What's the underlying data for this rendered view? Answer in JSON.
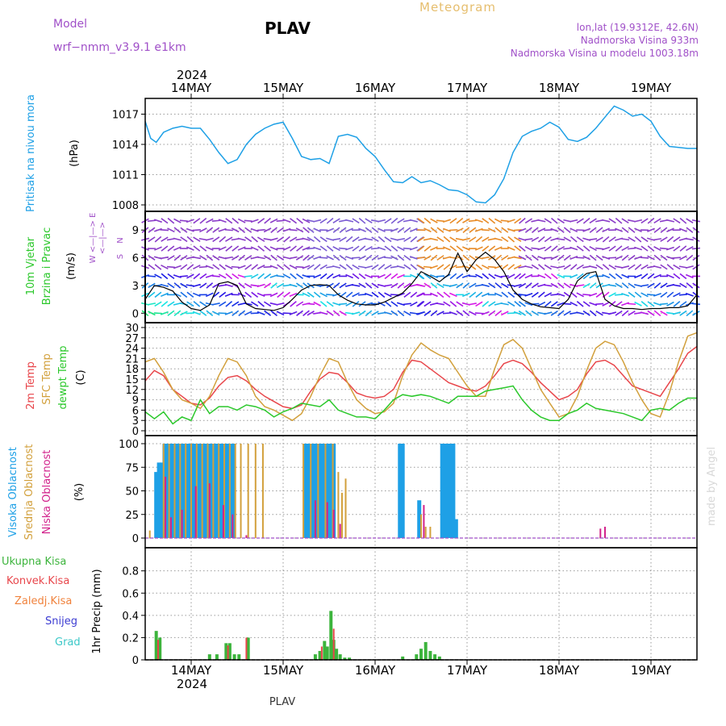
{
  "header": {
    "model_label": "Model",
    "model_name": "wrf−nmm_v3.9.1  e1km",
    "station": "PLAV",
    "product": "Meteogram",
    "coords": "lon,lat (19.9312E, 42.6N)",
    "elevation": "Nadmorska Visina 933m",
    "model_elevation": "Nadmorska Visina u modelu 1003.18m",
    "year_top": "2024",
    "year_bottom": "2024",
    "footer_station": "PLAV",
    "watermark": "made by Angel"
  },
  "colors": {
    "pressure": "#1ea0e6",
    "temp2m": "#e8464b",
    "sfc_temp": "#d2a03c",
    "dewpoint": "#2bc82b",
    "high_cloud": "#1ea0e6",
    "mid_cloud": "#d2a03c",
    "low_cloud": "#d2238c",
    "precip_total": "#3cb43c",
    "precip_conv": "#e8464b",
    "precip_stratiform": "#f0823c",
    "snow": "#3c3cd2",
    "graupel": "#3cc8c8",
    "label_purple": "#a050c8",
    "label_gold": "#e6be6e"
  },
  "chart_data": [
    {
      "type": "line",
      "panel": "pressure",
      "ylabel": "Pritisak na nivou mora",
      "unit": "(hPa)",
      "yticks": [
        1008,
        1011,
        1014,
        1017
      ],
      "ylim": [
        1008,
        1018
      ],
      "x_dates": [
        "14MAY",
        "15MAY",
        "16MAY",
        "17MAY",
        "18MAY",
        "19MAY"
      ],
      "x_range_days": [
        -0.5,
        5.5
      ],
      "series": [
        {
          "x": [
            -0.5,
            -0.44,
            -0.38,
            -0.3,
            -0.2,
            -0.1,
            0,
            0.1,
            0.2,
            0.3,
            0.4,
            0.5,
            0.6,
            0.7,
            0.8,
            0.9,
            1,
            1.1,
            1.2,
            1.3,
            1.4,
            1.5,
            1.6,
            1.7,
            1.8,
            1.9,
            2,
            2.1,
            2.2,
            2.3,
            2.4,
            2.5,
            2.6,
            2.7,
            2.8,
            2.9,
            3,
            3.1,
            3.2,
            3.3,
            3.4,
            3.5,
            3.6,
            3.7,
            3.8,
            3.9,
            4,
            4.1,
            4.2,
            4.3,
            4.4,
            4.5,
            4.6,
            4.7,
            4.8,
            4.9,
            5,
            5.1,
            5.2,
            5.3,
            5.4,
            5.5
          ],
          "values": [
            1016.3,
            1014.6,
            1014.2,
            1015.2,
            1015.6,
            1015.8,
            1015.6,
            1015.6,
            1014.5,
            1013.2,
            1012.1,
            1012.5,
            1014,
            1015,
            1015.6,
            1016,
            1016.2,
            1014.6,
            1012.8,
            1012.5,
            1012.6,
            1012.1,
            1014.8,
            1015,
            1014.7,
            1013.6,
            1012.8,
            1011.5,
            1010.3,
            1010.2,
            1010.8,
            1010.2,
            1010.4,
            1010,
            1009.5,
            1009.4,
            1009,
            1008.3,
            1008.2,
            1009,
            1010.6,
            1013.2,
            1014.8,
            1015.3,
            1015.6,
            1016.2,
            1015.7,
            1014.5,
            1014.3,
            1014.7,
            1015.6,
            1016.7,
            1017.8,
            1017.4,
            1016.8,
            1017,
            1016.3,
            1014.8,
            1013.8,
            1013.7,
            1013.6,
            1013.6
          ]
        }
      ]
    },
    {
      "type": "line",
      "panel": "wind",
      "ylabel": "10m Vjetar Brzina i Pravac",
      "unit": "(m/s)",
      "yticks": [
        0,
        3,
        6,
        9
      ],
      "ylim": [
        -0.5,
        10.5
      ],
      "legend_top": "N",
      "legend_left": "W <—|—> E",
      "legend_bottom": "S",
      "series": [
        {
          "x": [
            -0.5,
            -0.4,
            -0.3,
            -0.2,
            -0.1,
            0,
            0.1,
            0.2,
            0.3,
            0.4,
            0.5,
            0.6,
            0.7,
            0.8,
            0.9,
            1,
            1.1,
            1.2,
            1.3,
            1.4,
            1.5,
            1.6,
            1.7,
            1.8,
            1.9,
            2,
            2.1,
            2.2,
            2.3,
            2.4,
            2.5,
            2.6,
            2.7,
            2.8,
            2.9,
            3,
            3.1,
            3.2,
            3.3,
            3.4,
            3.5,
            3.6,
            3.7,
            3.8,
            3.9,
            4,
            4.1,
            4.2,
            4.3,
            4.4,
            4.5,
            4.6,
            4.7,
            4.8,
            4.9,
            5,
            5.1,
            5.2,
            5.3,
            5.4,
            5.5
          ],
          "values": [
            1.5,
            3,
            2.8,
            2.4,
            1.2,
            0.5,
            0.3,
            0.9,
            3.2,
            3.4,
            3,
            1,
            0.5,
            0.4,
            0.3,
            0.6,
            1.5,
            2.5,
            3,
            3.1,
            3,
            2,
            1.4,
            1,
            0.9,
            0.9,
            1.2,
            1.7,
            2.2,
            3.2,
            4.5,
            4,
            3.4,
            4.2,
            6.5,
            4.5,
            5.8,
            6.6,
            5.8,
            4.5,
            2.5,
            1.5,
            1,
            0.7,
            0.6,
            0.5,
            1.5,
            3.5,
            4.3,
            4.5,
            1.5,
            0.8,
            0.5,
            0.5,
            0.4,
            0.5,
            0.5,
            0.6,
            0.6,
            0.8,
            2
          ]
        }
      ]
    },
    {
      "type": "line",
      "panel": "temperature",
      "ylabels": [
        "2m Temp",
        "SFC Temp",
        "dewpt Temp"
      ],
      "unit": "(C)",
      "yticks": [
        0,
        3,
        6,
        9,
        12,
        15,
        18,
        21,
        24,
        27,
        30
      ],
      "ylim": [
        0,
        30
      ],
      "x": [
        -0.5,
        -0.4,
        -0.3,
        -0.2,
        -0.1,
        0,
        0.1,
        0.2,
        0.3,
        0.4,
        0.5,
        0.6,
        0.7,
        0.8,
        0.9,
        1,
        1.1,
        1.2,
        1.3,
        1.4,
        1.5,
        1.6,
        1.7,
        1.8,
        1.9,
        2,
        2.1,
        2.2,
        2.3,
        2.4,
        2.5,
        2.6,
        2.7,
        2.8,
        2.9,
        3,
        3.1,
        3.2,
        3.3,
        3.4,
        3.5,
        3.6,
        3.7,
        3.8,
        3.9,
        4,
        4.1,
        4.2,
        4.3,
        4.4,
        4.5,
        4.6,
        4.7,
        4.8,
        4.9,
        5,
        5.1,
        5.2,
        5.3,
        5.4,
        5.5
      ],
      "series": [
        {
          "name": "2m Temp",
          "values": [
            14.5,
            17.5,
            16,
            12,
            10,
            8,
            7.5,
            9.5,
            13,
            15.5,
            16,
            14.5,
            12,
            10,
            8.5,
            7,
            6.5,
            7.5,
            11.5,
            15,
            17,
            16.5,
            14,
            11,
            10,
            9.5,
            10,
            12,
            17,
            20.5,
            20,
            18,
            16,
            14,
            13,
            12,
            11.5,
            13,
            16,
            19.5,
            20.5,
            19.5,
            17,
            14,
            11.5,
            9,
            10,
            12,
            16.5,
            20,
            20.5,
            19,
            16,
            13,
            12,
            11,
            10,
            14,
            18,
            22.5,
            24.5
          ]
        },
        {
          "name": "SFC Temp",
          "values": [
            20,
            21,
            17,
            12,
            9,
            8,
            6.5,
            10,
            16,
            21,
            20,
            16,
            10,
            7,
            6,
            4.5,
            3,
            5,
            10,
            16,
            21,
            20,
            14,
            9,
            6.5,
            5,
            5.5,
            8,
            16,
            22,
            25.5,
            23.5,
            22,
            21,
            17,
            13,
            10,
            10,
            18,
            25,
            26.5,
            24,
            18,
            12,
            8,
            4,
            5,
            10,
            17.5,
            24,
            26,
            25,
            20,
            14,
            9,
            5,
            4,
            11,
            20,
            27.5,
            28.5
          ]
        },
        {
          "name": "dewpt Temp",
          "values": [
            5.5,
            3.5,
            5.5,
            2,
            4,
            3,
            9,
            5,
            7,
            7,
            6,
            7.5,
            7,
            6,
            4,
            5.5,
            6.5,
            8,
            7.5,
            7,
            9,
            6,
            5,
            4,
            4,
            3.5,
            6,
            9,
            10.5,
            10,
            10.5,
            10,
            9,
            8,
            10,
            10,
            10,
            11.5,
            12,
            12.5,
            13,
            9,
            6,
            4,
            3,
            3,
            5,
            6,
            8,
            6.5,
            6,
            5.5,
            5,
            4,
            3,
            6,
            6.5,
            6,
            8,
            9.5,
            9.5
          ]
        }
      ]
    },
    {
      "type": "bar",
      "panel": "cloud",
      "ylabels": [
        "Visoka Oblacnost",
        "Srednja Oblacnost",
        "Niska Oblacnost"
      ],
      "unit": "(%)",
      "yticks": [
        0,
        25,
        50,
        75,
        100
      ],
      "ylim": [
        0,
        100
      ],
      "series": [
        {
          "name": "Visoka Oblacnost",
          "x": [
            -0.38,
            -0.35,
            -0.32,
            -0.29,
            -0.26,
            -0.23,
            -0.2,
            -0.17,
            -0.14,
            -0.11,
            -0.08,
            -0.05,
            -0.02,
            0.01,
            0.04,
            0.07,
            0.1,
            0.13,
            0.16,
            0.19,
            0.22,
            0.25,
            0.28,
            0.31,
            0.34,
            0.37,
            0.4,
            0.43,
            0.46,
            1.25,
            1.28,
            1.31,
            1.34,
            1.37,
            1.4,
            1.43,
            1.46,
            1.49,
            1.52,
            1.55,
            2.27,
            2.3,
            2.48,
            2.73,
            2.76,
            2.79,
            2.82,
            2.85,
            2.88
          ],
          "values": [
            70,
            80,
            80,
            100,
            100,
            100,
            100,
            100,
            100,
            100,
            100,
            100,
            100,
            100,
            100,
            100,
            100,
            100,
            100,
            100,
            100,
            100,
            100,
            100,
            100,
            100,
            100,
            100,
            100,
            100,
            100,
            100,
            100,
            100,
            100,
            100,
            100,
            100,
            100,
            100,
            100,
            100,
            40,
            100,
            100,
            100,
            100,
            100,
            20
          ]
        },
        {
          "name": "Srednja Oblacnost",
          "x": [
            -0.45,
            -0.3,
            -0.24,
            -0.18,
            -0.12,
            -0.06,
            0,
            0.06,
            0.12,
            0.18,
            0.24,
            0.3,
            0.36,
            0.42,
            0.48,
            0.54,
            0.62,
            0.7,
            0.78,
            1.22,
            1.3,
            1.38,
            1.46,
            1.54,
            1.6,
            1.64,
            1.68,
            2.5,
            2.55,
            2.6
          ],
          "values": [
            8,
            100,
            100,
            100,
            100,
            100,
            100,
            100,
            100,
            100,
            100,
            100,
            100,
            100,
            100,
            100,
            100,
            100,
            100,
            100,
            100,
            100,
            100,
            100,
            70,
            48,
            63,
            25,
            12,
            12
          ]
        },
        {
          "name": "Niska Oblacnost",
          "x": [
            -0.28,
            -0.22,
            -0.1,
            0.05,
            0.2,
            0.35,
            0.45,
            0.6,
            1.35,
            1.48,
            1.55,
            1.62,
            2.53,
            4.45,
            4.5
          ],
          "values": [
            65,
            22,
            30,
            55,
            58,
            35,
            25,
            3,
            40,
            38,
            30,
            15,
            35,
            10,
            12
          ]
        }
      ]
    },
    {
      "type": "bar",
      "panel": "precipitation",
      "ylabels": [
        "Ukupna Kisa",
        "Konvek.Kisa",
        "Zaledj.Kisa",
        "Snijeg",
        "Grad"
      ],
      "ylabel": "1hr Precip (mm)",
      "yticks": [
        0,
        0.2,
        0.4,
        0.6,
        0.8
      ],
      "ylim": [
        0,
        0.95
      ],
      "series": [
        {
          "name": "Ukupna Kisa",
          "x": [
            -0.38,
            -0.34,
            0.2,
            0.28,
            0.38,
            0.42,
            0.47,
            0.52,
            0.62,
            1.35,
            1.4,
            1.45,
            1.48,
            1.52,
            1.55,
            1.58,
            1.62,
            1.67,
            1.72,
            2.3,
            2.45,
            2.5,
            2.55,
            2.6,
            2.65,
            2.7
          ],
          "values": [
            0.26,
            0.2,
            0.05,
            0.05,
            0.15,
            0.15,
            0.05,
            0.05,
            0.2,
            0.05,
            0.08,
            0.17,
            0.12,
            0.44,
            0.18,
            0.1,
            0.05,
            0.02,
            0.02,
            0.03,
            0.05,
            0.1,
            0.16,
            0.08,
            0.05,
            0.03
          ]
        },
        {
          "name": "Konvek.Kisa",
          "x": [
            -0.36,
            0.4,
            0.6,
            1.42,
            1.55
          ],
          "values": [
            0.18,
            0.13,
            0.2,
            0.12,
            0.28
          ]
        }
      ]
    }
  ]
}
